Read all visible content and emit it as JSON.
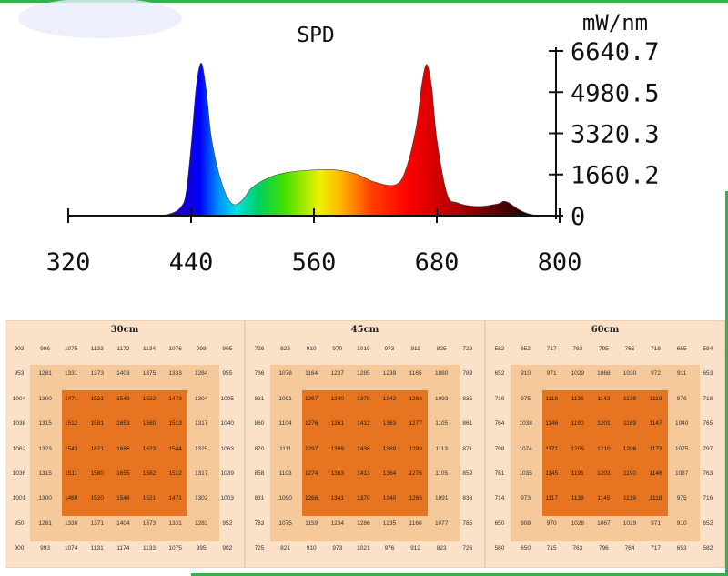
{
  "chart_data": [
    {
      "type": "line",
      "title": "SPD",
      "ylabel": "mW/nm",
      "xlim": [
        320,
        800
      ],
      "ylim": [
        0,
        6640.7
      ],
      "xticks": [
        "320",
        "440",
        "560",
        "680",
        "800"
      ],
      "yticks": [
        "6640.7",
        "4980.5",
        "3320.3",
        "1660.2",
        "0"
      ],
      "x": [
        320,
        400,
        420,
        430,
        435,
        440,
        445,
        450,
        455,
        460,
        470,
        480,
        490,
        500,
        520,
        540,
        560,
        580,
        600,
        620,
        640,
        650,
        660,
        665,
        670,
        675,
        680,
        690,
        700,
        720,
        740,
        745,
        750,
        760,
        770,
        780,
        800
      ],
      "values": [
        0,
        0,
        80,
        350,
        900,
        2800,
        5200,
        6150,
        5000,
        3100,
        1300,
        480,
        620,
        1150,
        1600,
        1780,
        1840,
        1850,
        1700,
        1350,
        1250,
        1900,
        3600,
        5200,
        6100,
        5200,
        3100,
        880,
        520,
        370,
        480,
        580,
        530,
        250,
        70,
        0,
        0
      ]
    },
    {
      "type": "table",
      "title": "30cm",
      "rows": [
        [
          "903",
          "996",
          "1075",
          "1133",
          "1172",
          "1134",
          "1076",
          "998",
          "905"
        ],
        [
          "953",
          "1281",
          "1331",
          "1373",
          "1403",
          "1375",
          "1333",
          "1284",
          "955"
        ],
        [
          "1004",
          "1300",
          "1471",
          "1521",
          "1549",
          "1522",
          "1473",
          "1304",
          "1005"
        ],
        [
          "1038",
          "1315",
          "1512",
          "1581",
          "1653",
          "1580",
          "1513",
          "1317",
          "1040"
        ],
        [
          "1062",
          "1323",
          "1543",
          "1621",
          "1686",
          "1623",
          "1544",
          "1325",
          "1063"
        ],
        [
          "1036",
          "1315",
          "1511",
          "1580",
          "1655",
          "1582",
          "1512",
          "1317",
          "1039"
        ],
        [
          "1001",
          "1300",
          "1469",
          "1520",
          "1546",
          "1521",
          "1471",
          "1302",
          "1003"
        ],
        [
          "950",
          "1281",
          "1330",
          "1371",
          "1404",
          "1373",
          "1331",
          "1283",
          "952"
        ],
        [
          "900",
          "993",
          "1074",
          "1131",
          "1174",
          "1133",
          "1075",
          "995",
          "902"
        ]
      ]
    },
    {
      "type": "table",
      "title": "45cm",
      "rows": [
        [
          "726",
          "823",
          "910",
          "970",
          "1019",
          "973",
          "911",
          "825",
          "728"
        ],
        [
          "786",
          "1078",
          "1164",
          "1237",
          "1285",
          "1239",
          "1165",
          "1080",
          "789"
        ],
        [
          "831",
          "1091",
          "1267",
          "1340",
          "1378",
          "1342",
          "1268",
          "1093",
          "835"
        ],
        [
          "860",
          "1104",
          "1276",
          "1361",
          "1412",
          "1363",
          "1277",
          "1105",
          "861"
        ],
        [
          "870",
          "1111",
          "1297",
          "1388",
          "1436",
          "1389",
          "1299",
          "1113",
          "871"
        ],
        [
          "858",
          "1103",
          "1274",
          "1363",
          "1413",
          "1364",
          "1276",
          "1105",
          "859"
        ],
        [
          "831",
          "1090",
          "1266",
          "1341",
          "1379",
          "1340",
          "1266",
          "1091",
          "833"
        ],
        [
          "783",
          "1075",
          "1159",
          "1234",
          "1286",
          "1235",
          "1160",
          "1077",
          "785"
        ],
        [
          "725",
          "821",
          "910",
          "973",
          "1021",
          "976",
          "912",
          "823",
          "726"
        ]
      ]
    },
    {
      "type": "table",
      "title": "60cm",
      "rows": [
        [
          "582",
          "652",
          "717",
          "763",
          "795",
          "765",
          "718",
          "655",
          "584"
        ],
        [
          "652",
          "910",
          "971",
          "1029",
          "1068",
          "1030",
          "972",
          "911",
          "653"
        ],
        [
          "716",
          "975",
          "1118",
          "1136",
          "1143",
          "1138",
          "1119",
          "976",
          "718"
        ],
        [
          "764",
          "1038",
          "1146",
          "1190",
          "1201",
          "1189",
          "1147",
          "1040",
          "765"
        ],
        [
          "798",
          "1074",
          "1171",
          "1205",
          "1210",
          "1206",
          "1173",
          "1075",
          "797"
        ],
        [
          "761",
          "1035",
          "1145",
          "1191",
          "1203",
          "1190",
          "1146",
          "1037",
          "763"
        ],
        [
          "714",
          "973",
          "1117",
          "1138",
          "1145",
          "1139",
          "1118",
          "975",
          "716"
        ],
        [
          "650",
          "908",
          "970",
          "1028",
          "1067",
          "1029",
          "971",
          "910",
          "652"
        ],
        [
          "580",
          "650",
          "715",
          "763",
          "796",
          "764",
          "717",
          "653",
          "582"
        ]
      ]
    }
  ]
}
